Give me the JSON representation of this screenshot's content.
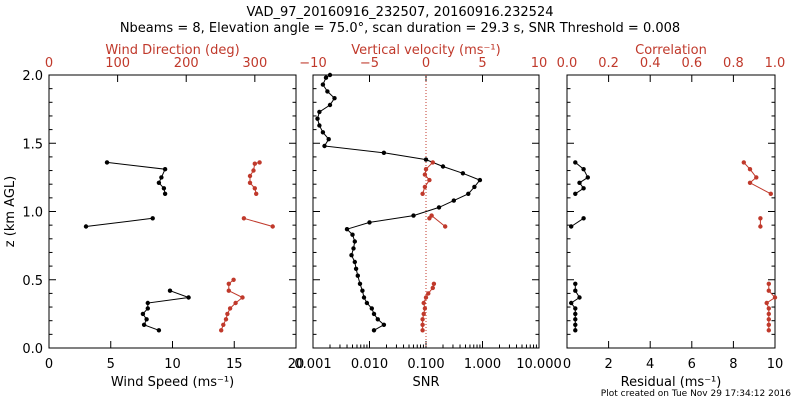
{
  "title": "VAD_97_20160916_232507, 20160916.232524",
  "subtitle": "Nbeams = 8, Elevation angle = 75.0°, scan duration = 29.3 s, SNR Threshold = 0.008",
  "footer": "Plot created on Tue Nov 29 17:34:12 2016",
  "colors": {
    "primary": "#000000",
    "secondary": "#c0392b"
  },
  "chart_data": [
    {
      "type": "line",
      "ylabel": "z (km AGL)",
      "ylim": [
        0,
        2
      ],
      "yticks": [
        "0.0",
        "0.5",
        "1.0",
        "1.5",
        "2.0"
      ],
      "xlabel": "Wind Speed (ms⁻¹)",
      "xlim": [
        0,
        20
      ],
      "xticks": [
        "0",
        "5",
        "10",
        "15",
        "20"
      ],
      "x2label": "Wind Direction (deg)",
      "x2lim": [
        0,
        360
      ],
      "x2ticks": [
        "0",
        "100",
        "200",
        "300"
      ],
      "series": [
        {
          "axis": "bottom",
          "segments": [
            [
              [
                8.9,
                0.13
              ],
              [
                7.7,
                0.17
              ],
              [
                7.9,
                0.21
              ],
              [
                7.6,
                0.25
              ],
              [
                8.0,
                0.29
              ],
              [
                8.0,
                0.33
              ],
              [
                11.3,
                0.37
              ],
              [
                9.8,
                0.42
              ]
            ],
            [
              [
                3.0,
                0.89
              ],
              [
                8.4,
                0.95
              ]
            ],
            [
              [
                9.4,
                1.13
              ],
              [
                9.3,
                1.17
              ],
              [
                8.9,
                1.21
              ],
              [
                9.1,
                1.25
              ],
              [
                9.4,
                1.31
              ],
              [
                4.7,
                1.36
              ]
            ]
          ]
        },
        {
          "axis": "top",
          "segments": [
            [
              [
                251,
                0.13
              ],
              [
                254,
                0.17
              ],
              [
                258,
                0.21
              ],
              [
                260,
                0.25
              ],
              [
                264,
                0.29
              ],
              [
                272,
                0.33
              ],
              [
                282,
                0.37
              ],
              [
                262,
                0.42
              ],
              [
                262,
                0.47
              ],
              [
                269,
                0.5
              ]
            ],
            [
              [
                284,
                0.95
              ],
              [
                326,
                0.89
              ]
            ],
            [
              [
                302,
                1.13
              ],
              [
                300,
                1.17
              ],
              [
                293,
                1.21
              ],
              [
                293,
                1.26
              ],
              [
                298,
                1.3
              ],
              [
                300,
                1.35
              ],
              [
                307,
                1.36
              ]
            ]
          ]
        }
      ]
    },
    {
      "type": "line",
      "xlabel": "SNR",
      "xscale": "log",
      "xlim": [
        0.001,
        10
      ],
      "xticks": [
        "0.001",
        "0.010",
        "0.100",
        "1.000",
        "10.000"
      ],
      "x2label": "Vertical velocity (ms⁻¹)",
      "x2lim": [
        -10,
        10
      ],
      "x2ticks": [
        "−10",
        "−5",
        "0",
        "5",
        "10"
      ],
      "reference_line": "vertical velocity = 0 (dotted)",
      "series": [
        {
          "axis": "bottom",
          "segments": [
            [
              [
                0.012,
                0.13
              ],
              [
                0.018,
                0.17
              ],
              [
                0.014,
                0.21
              ],
              [
                0.012,
                0.25
              ],
              [
                0.011,
                0.29
              ],
              [
                0.009,
                0.33
              ],
              [
                0.008,
                0.37
              ],
              [
                0.0075,
                0.42
              ],
              [
                0.0068,
                0.47
              ],
              [
                0.0062,
                0.53
              ],
              [
                0.0058,
                0.58
              ],
              [
                0.0055,
                0.63
              ],
              [
                0.0048,
                0.68
              ],
              [
                0.0052,
                0.73
              ],
              [
                0.0055,
                0.78
              ],
              [
                0.005,
                0.83
              ],
              [
                0.004,
                0.87
              ],
              [
                0.01,
                0.92
              ],
              [
                0.06,
                0.97
              ],
              [
                0.17,
                1.03
              ],
              [
                0.31,
                1.08
              ],
              [
                0.56,
                1.13
              ],
              [
                0.72,
                1.18
              ],
              [
                0.9,
                1.23
              ],
              [
                0.45,
                1.28
              ],
              [
                0.2,
                1.33
              ],
              [
                0.1,
                1.38
              ],
              [
                0.018,
                1.43
              ],
              [
                0.0016,
                1.48
              ],
              [
                0.0019,
                1.53
              ],
              [
                0.0015,
                1.58
              ],
              [
                0.0013,
                1.63
              ],
              [
                0.0012,
                1.68
              ],
              [
                0.0013,
                1.73
              ],
              [
                0.002,
                1.78
              ],
              [
                0.0024,
                1.83
              ],
              [
                0.0018,
                1.88
              ],
              [
                0.0015,
                1.93
              ],
              [
                0.0017,
                1.98
              ],
              [
                0.002,
                2.0
              ]
            ]
          ]
        },
        {
          "axis": "top",
          "segments": [
            [
              [
                -0.3,
                0.13
              ],
              [
                -0.3,
                0.17
              ],
              [
                -0.3,
                0.21
              ],
              [
                -0.2,
                0.25
              ],
              [
                -0.1,
                0.29
              ],
              [
                -0.2,
                0.33
              ],
              [
                0.0,
                0.37
              ],
              [
                0.2,
                0.4
              ],
              [
                0.6,
                0.44
              ],
              [
                0.7,
                0.47
              ]
            ],
            [
              [
                0.3,
                0.95
              ],
              [
                0.5,
                0.97
              ],
              [
                1.7,
                0.89
              ]
            ],
            [
              [
                -0.3,
                1.13
              ],
              [
                -0.1,
                1.18
              ],
              [
                0.3,
                1.23
              ],
              [
                -0.1,
                1.27
              ],
              [
                0.0,
                1.31
              ],
              [
                0.6,
                1.36
              ]
            ]
          ]
        }
      ]
    },
    {
      "type": "line",
      "xlabel": "Residual (ms⁻¹)",
      "xlim": [
        0,
        10
      ],
      "xticks": [
        "0",
        "2",
        "4",
        "6",
        "8",
        "10"
      ],
      "x2label": "Correlation",
      "x2lim": [
        0,
        1
      ],
      "x2ticks": [
        "0.0",
        "0.2",
        "0.4",
        "0.6",
        "0.8",
        "1.0"
      ],
      "series": [
        {
          "axis": "bottom",
          "segments": [
            [
              [
                0.4,
                0.13
              ],
              [
                0.4,
                0.17
              ],
              [
                0.4,
                0.21
              ],
              [
                0.4,
                0.25
              ],
              [
                0.4,
                0.29
              ],
              [
                0.2,
                0.33
              ],
              [
                0.6,
                0.37
              ],
              [
                0.4,
                0.42
              ],
              [
                0.4,
                0.47
              ]
            ],
            [
              [
                0.2,
                0.89
              ],
              [
                0.8,
                0.95
              ]
            ],
            [
              [
                0.4,
                1.13
              ],
              [
                0.8,
                1.17
              ],
              [
                0.6,
                1.21
              ],
              [
                1.0,
                1.25
              ],
              [
                0.8,
                1.31
              ],
              [
                0.4,
                1.36
              ]
            ]
          ]
        },
        {
          "axis": "top",
          "segments": [
            [
              [
                0.97,
                0.13
              ],
              [
                0.97,
                0.17
              ],
              [
                0.97,
                0.21
              ],
              [
                0.97,
                0.25
              ],
              [
                0.97,
                0.29
              ],
              [
                0.96,
                0.33
              ],
              [
                1.0,
                0.37
              ],
              [
                0.97,
                0.42
              ],
              [
                0.97,
                0.47
              ]
            ],
            [
              [
                0.93,
                0.89
              ],
              [
                0.93,
                0.95
              ]
            ],
            [
              [
                0.98,
                1.13
              ],
              [
                0.88,
                1.21
              ],
              [
                0.91,
                1.25
              ],
              [
                0.88,
                1.31
              ],
              [
                0.85,
                1.36
              ]
            ]
          ]
        }
      ]
    }
  ]
}
